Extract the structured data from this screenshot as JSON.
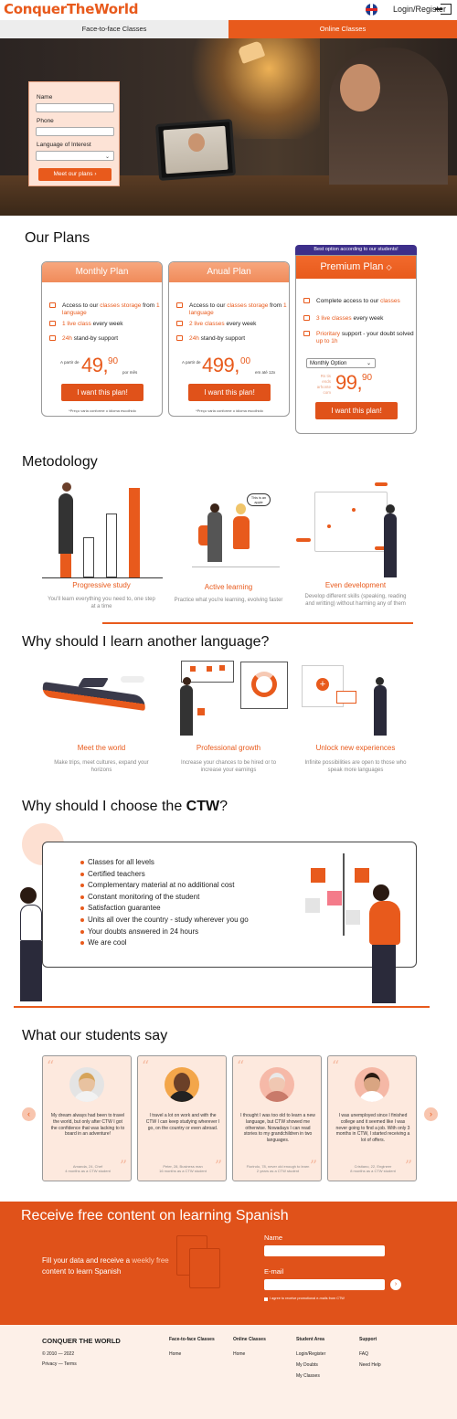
{
  "header": {
    "logo": "ConquerTheWorld",
    "login_label": "Login/Register"
  },
  "tabs": [
    {
      "label": "Face-to-face Classes",
      "active": false
    },
    {
      "label": "Online Classes",
      "active": true
    }
  ],
  "hero_form": {
    "name_label": "Name",
    "phone_label": "Phone",
    "language_label": "Language of Interest",
    "language_value": "",
    "button_label": "Meet our plans ›"
  },
  "plans": {
    "title": "Our Plans",
    "best_badge": "Best option according to our students!",
    "items": [
      {
        "name": "Monthly Plan",
        "features": [
          {
            "a": "Access to our ",
            "b": "classes storage",
            "c": " from ",
            "d": "1 language"
          },
          {
            "a": "",
            "b": "1 live class",
            "c": " every week",
            "d": ""
          },
          {
            "a": "",
            "b": "24h",
            "c": " stand-by support",
            "d": ""
          }
        ],
        "from": "A partir de",
        "price": "49,",
        "cents": "90",
        "per": "por mês",
        "button": "I want this plan!",
        "note": "*Preço varia conforme o idioma escolhido"
      },
      {
        "name": "Anual Plan",
        "features": [
          {
            "a": "Access to our ",
            "b": "classes storage",
            "c": " from ",
            "d": "1 language"
          },
          {
            "a": "",
            "b": "2 live classes",
            "c": " every week",
            "d": ""
          },
          {
            "a": "",
            "b": "24h",
            "c": " stand-by support",
            "d": ""
          }
        ],
        "from": "A partir de",
        "price": "499,",
        "cents": "00",
        "per": "em até 12x",
        "button": "I want this plan!",
        "note": "*Preço varia conforme o idioma escolhido"
      },
      {
        "name": "Premium Plan",
        "features": [
          {
            "a": "Complete access to our ",
            "b": "classes",
            "c": "",
            "d": ""
          },
          {
            "a": "",
            "b": "3 live classes",
            "c": " every week",
            "d": ""
          },
          {
            "a": "",
            "b": "Prioritary",
            "c": " support - your doubt solved ",
            "d": "up to 1h"
          }
        ],
        "select": "Monthly Option",
        "small_note": "Rs tis ends arhonte com",
        "price": "99,",
        "cents": "90",
        "button": "I want this plan!"
      }
    ]
  },
  "methodology": {
    "title": "Metodology",
    "items": [
      {
        "title": "Progressive study",
        "text": "You'll learn everything you need to, one step at a time"
      },
      {
        "title": "Active learning",
        "text": "Practice what you're learning, evolving faster"
      },
      {
        "title": "Even development",
        "text": "Develop different skills (speaking, reading and writting) without harming any of them"
      }
    ],
    "bubble": "This is an apple"
  },
  "why_language": {
    "title": "Why should I learn another language?",
    "items": [
      {
        "title": "Meet the world",
        "text": "Make trips, meet cultures, expand your horizons"
      },
      {
        "title": "Professional growth",
        "text": "Increase your chances to be hired or to increase your earnings"
      },
      {
        "title": "Unlock new experiences",
        "text": "Infinite possibilities are open to those who speak more languages"
      }
    ]
  },
  "why_ctw": {
    "title_a": "Why should I choose the ",
    "title_b": "CTW",
    "title_c": "?",
    "list": [
      "Classes for all levels",
      "Certified teachers",
      "Complementary material at no additional cost",
      "Constant monitoring of the student",
      "Satisfaction guarantee",
      "Units all over the country - study wherever you go",
      "Your doubts answered in 24 hours",
      "We are cool"
    ]
  },
  "testimonials": {
    "title": "What our students say",
    "items": [
      {
        "text": "My dream always had been to travel the world, but only after CTW I got the confidence that was lacking to to board in an adventure!",
        "name": "Amanda, 24, Chef",
        "time": "4 months as a CTW student"
      },
      {
        "text": "I travel a lot on work and with the CTW I can keep studying wherever I go, on the country or even abroad.",
        "name": "Peter, 28, Business man",
        "time": "16 months as a CTW student"
      },
      {
        "text": "I thought I was too old to learn a new language, but CTW showed me otherwise. Nowadays I can read stories to my grandchildren in two languages.",
        "name": "Fiorindo, 78, never old enough to learn",
        "time": "2 years as a CTW student"
      },
      {
        "text": "I was unemployed since I finished college and it seemed like I was never going to find a job. With only 3 months in CTW, I started receiving a lot of offers.",
        "name": "Cristiano, 22, Engineer",
        "time": "8 months as a CTW student"
      }
    ]
  },
  "newsletter": {
    "title": "Receive free content on learning Spanish",
    "text_a": "Fill your data and receive a ",
    "text_b": "weekly free",
    "text_c": " content to learn Spanish",
    "name_label": "Name",
    "email_label": "E-mail",
    "consent": "I agree to receive promotional e-mails from CTW"
  },
  "footer": {
    "brand": "CONQUER THE WORLD",
    "copyright": "© 2010 — 2022",
    "privacy": "Privacy — Terms",
    "columns": [
      {
        "head": "Face-to-face Classes",
        "links": [
          "Home"
        ]
      },
      {
        "head": "Online Classes",
        "links": [
          "Home"
        ]
      },
      {
        "head": "Student Area",
        "links": [
          "Login/Register",
          "My Doubts",
          "My Classes"
        ]
      },
      {
        "head": "Support",
        "links": [
          "FAQ",
          "Need Help"
        ]
      }
    ]
  },
  "colors": {
    "accent": "#e85a1c",
    "badge": "#3d2f8a"
  }
}
